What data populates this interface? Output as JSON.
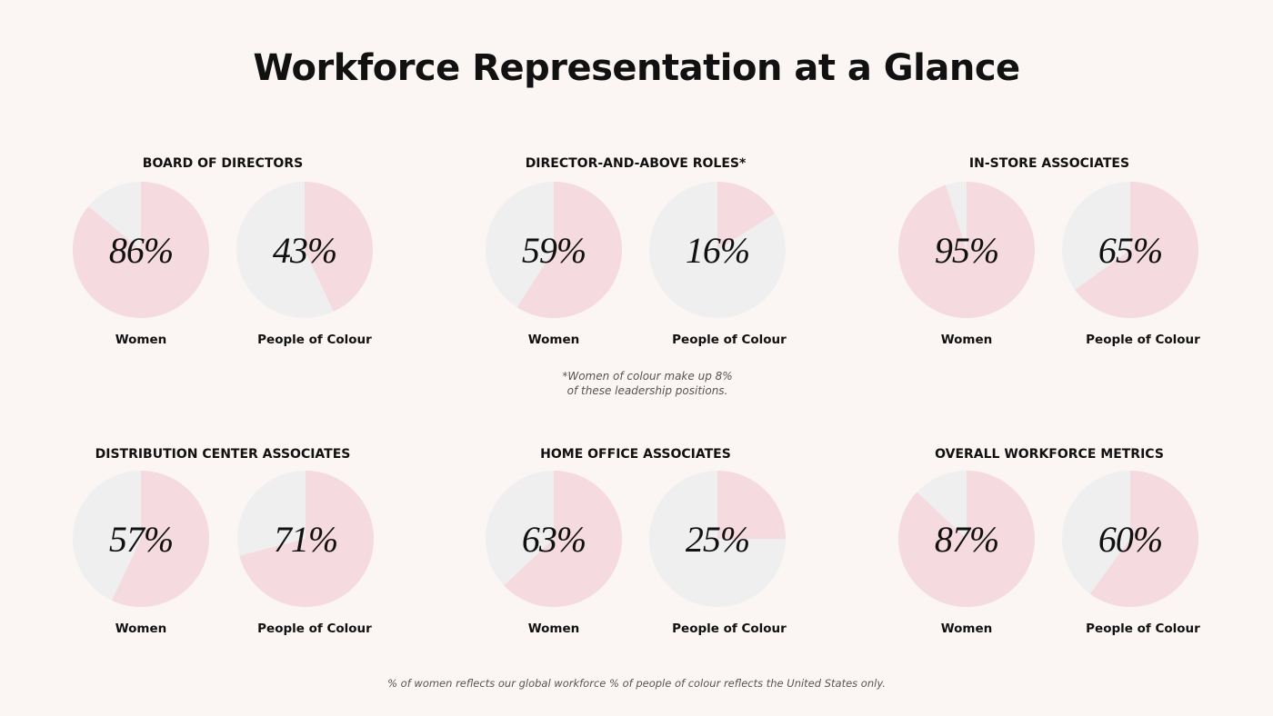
{
  "page": {
    "title": "Workforce Representation at a Glance",
    "note_line1": "*Women of colour make up 8%",
    "note_line2": "of these leadership positions.",
    "footer": "% of women reflects our global workforce % of people of colour reflects the United States only."
  },
  "colors": {
    "fill": "#f5dadf",
    "rest": "#efefef",
    "background": "#fbf5f4"
  },
  "chart_data": [
    {
      "type": "pie",
      "title": "BOARD OF DIRECTORS",
      "categories": [
        "Women",
        "People of Colour"
      ],
      "values": [
        86,
        43
      ],
      "labels": [
        "86%",
        "43%"
      ]
    },
    {
      "type": "pie",
      "title": "DIRECTOR-AND-ABOVE ROLES*",
      "categories": [
        "Women",
        "People of Colour"
      ],
      "values": [
        59,
        16
      ],
      "labels": [
        "59%",
        "16%"
      ]
    },
    {
      "type": "pie",
      "title": "IN-STORE ASSOCIATES",
      "categories": [
        "Women",
        "People of Colour"
      ],
      "values": [
        95,
        65
      ],
      "labels": [
        "95%",
        "65%"
      ]
    },
    {
      "type": "pie",
      "title": "DISTRIBUTION CENTER ASSOCIATES",
      "categories": [
        "Women",
        "People of Colour"
      ],
      "values": [
        57,
        71
      ],
      "labels": [
        "57%",
        "71%"
      ]
    },
    {
      "type": "pie",
      "title": "HOME OFFICE ASSOCIATES",
      "categories": [
        "Women",
        "People of Colour"
      ],
      "values": [
        63,
        25
      ],
      "labels": [
        "63%",
        "25%"
      ]
    },
    {
      "type": "pie",
      "title": "OVERALL WORKFORCE METRICS",
      "categories": [
        "Women",
        "People of Colour"
      ],
      "values": [
        87,
        60
      ],
      "labels": [
        "87%",
        "60%"
      ]
    }
  ]
}
